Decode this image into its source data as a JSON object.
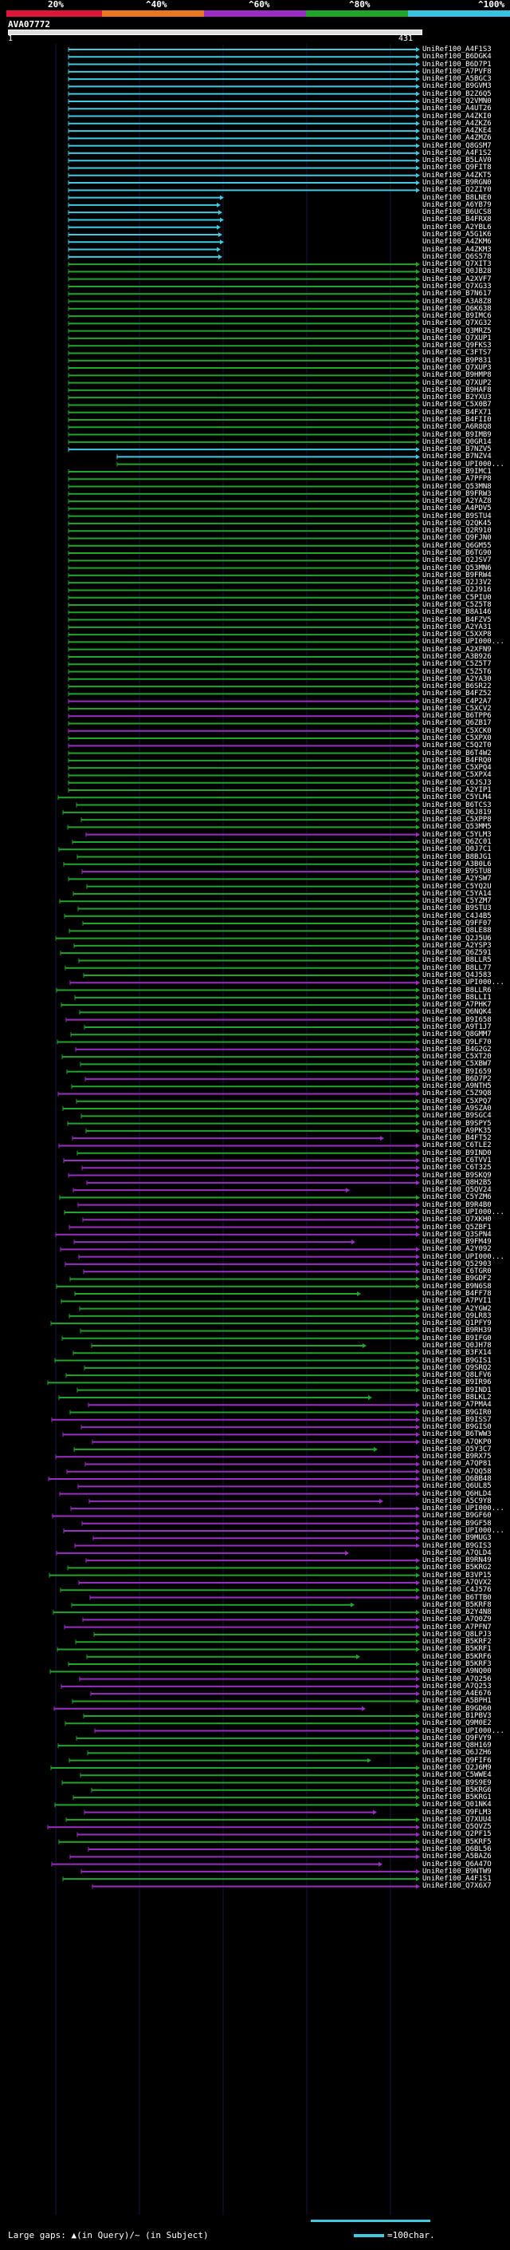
{
  "header": {
    "query_id": "AVA07772",
    "start": "1",
    "end": "431"
  },
  "identity_scale": {
    "labels": [
      "20%",
      "^40%",
      "^60%",
      "^80%",
      "^100%"
    ],
    "colors": [
      "#e0153a",
      "#e97722",
      "#9b2ec2",
      "#21a52a",
      "#38c3e0"
    ]
  },
  "legend": {
    "gaps_text": "Large gaps: ▲(in Query)/~ (in Subject)",
    "scale_text": "=100char."
  },
  "hits": [
    {
      "name": "UniRef100_A4F1S3",
      "color": "#41c9e0"
    },
    {
      "name": "UniRef100_B6DGK4",
      "color": "#41c9e0"
    },
    {
      "name": "UniRef100_B6D7P1",
      "color": "#41c9e0"
    },
    {
      "name": "UniRef100_A7PVF8",
      "color": "#41c9e0"
    },
    {
      "name": "UniRef100_A5BGC3",
      "color": "#41c9e0"
    },
    {
      "name": "UniRef100_B9GVM3",
      "color": "#41c9e0"
    },
    {
      "name": "UniRef100_B2Z6Q5",
      "color": "#41c9e0"
    },
    {
      "name": "UniRef100_Q2VMN0",
      "color": "#41c9e0"
    },
    {
      "name": "UniRef100_A4UT26",
      "color": "#41c9e0"
    },
    {
      "name": "UniRef100_A4ZKI0",
      "color": "#41c9e0"
    },
    {
      "name": "UniRef100_A4ZKZ6",
      "color": "#41c9e0"
    },
    {
      "name": "UniRef100_A4ZKE4",
      "color": "#41c9e0"
    },
    {
      "name": "UniRef100_A4ZMZ6",
      "color": "#41c9e0"
    },
    {
      "name": "UniRef100_Q8GSM7",
      "color": "#41c9e0"
    },
    {
      "name": "UniRef100_A4F1S2",
      "color": "#41c9e0"
    },
    {
      "name": "UniRef100_B5LAV0",
      "color": "#41c9e0"
    },
    {
      "name": "UniRef100_Q9FIT8",
      "color": "#41c9e0"
    },
    {
      "name": "UniRef100_A4ZKT5",
      "color": "#41c9e0"
    },
    {
      "name": "UniRef100_B9RGN0",
      "color": "#41c9e0"
    },
    {
      "name": "UniRef100_Q2ZIY0",
      "color": "#41c9e0"
    },
    {
      "name": "UniRef100_B8LNE0",
      "color": "#41c9e0"
    },
    {
      "name": "UniRef100_A6YB79",
      "color": "#41c9e0"
    },
    {
      "name": "UniRef100_B6UCS8",
      "color": "#41c9e0"
    },
    {
      "name": "UniRef100_B4FRX8",
      "color": "#41c9e0"
    },
    {
      "name": "UniRef100_A2YBL6",
      "color": "#41c9e0"
    },
    {
      "name": "UniRef100_A5G1K6",
      "color": "#41c9e0"
    },
    {
      "name": "UniRef100_A4ZKM6",
      "color": "#41c9e0"
    },
    {
      "name": "UniRef100_A4ZKM3",
      "color": "#41c9e0"
    },
    {
      "name": "UniRef100_Q6S578",
      "color": "#41c9e0"
    },
    {
      "name": "UniRef100_Q7XIT3",
      "color": "#21a52a"
    },
    {
      "name": "UniRef100_Q0JB28",
      "color": "#21a52a"
    },
    {
      "name": "UniRef100_A2XVF7",
      "color": "#21a52a"
    },
    {
      "name": "UniRef100_Q7XG33",
      "color": "#21a52a"
    },
    {
      "name": "UniRef100_B7N617",
      "color": "#21a52a"
    },
    {
      "name": "UniRef100_A3A8Z8",
      "color": "#21a52a"
    },
    {
      "name": "UniRef100_Q6K638",
      "color": "#21a52a"
    },
    {
      "name": "UniRef100_B9IMC6",
      "color": "#21a52a"
    },
    {
      "name": "UniRef100_Q7XG32",
      "color": "#21a52a"
    },
    {
      "name": "UniRef100_Q3MRZ5",
      "color": "#21a52a"
    },
    {
      "name": "UniRef100_Q7XUP1",
      "color": "#21a52a"
    },
    {
      "name": "UniRef100_Q9FKS3",
      "color": "#21a52a"
    },
    {
      "name": "UniRef100_C3FTS7",
      "color": "#21a52a"
    },
    {
      "name": "UniRef100_B9P831",
      "color": "#21a52a"
    },
    {
      "name": "UniRef100_Q7XUP3",
      "color": "#21a52a"
    },
    {
      "name": "UniRef100_B9HMP8",
      "color": "#21a52a"
    },
    {
      "name": "UniRef100_Q7XUP2",
      "color": "#21a52a"
    },
    {
      "name": "UniRef100_B9HAF8",
      "color": "#21a52a"
    },
    {
      "name": "UniRef100_B2YXU3",
      "color": "#21a52a"
    },
    {
      "name": "UniRef100_C5X0B7",
      "color": "#21a52a"
    },
    {
      "name": "UniRef100_B4FX71",
      "color": "#21a52a"
    },
    {
      "name": "UniRef100_B4FII0",
      "color": "#21a52a"
    },
    {
      "name": "UniRef100_A6R8Q8",
      "color": "#21a52a"
    },
    {
      "name": "UniRef100_B9IMB9",
      "color": "#21a52a"
    },
    {
      "name": "UniRef100_Q0GR14",
      "color": "#21a52a"
    },
    {
      "name": "UniRef100_B7NZV5",
      "color": "#41c9e0"
    },
    {
      "name": "UniRef100_B7NZV4",
      "color": "#41c9e0"
    },
    {
      "name": "UniRef100_UPI000...",
      "color": "#21a52a"
    },
    {
      "name": "UniRef100_B9IMC1",
      "color": "#21a52a"
    },
    {
      "name": "UniRef100_A7PFP8",
      "color": "#21a52a"
    },
    {
      "name": "UniRef100_Q53MN8",
      "color": "#21a52a"
    },
    {
      "name": "UniRef100_B9FRW3",
      "color": "#21a52a"
    },
    {
      "name": "UniRef100_A2YAZ8",
      "color": "#21a52a"
    },
    {
      "name": "UniRef100_A4PDV5",
      "color": "#21a52a"
    },
    {
      "name": "UniRef100_B9STU4",
      "color": "#21a52a"
    },
    {
      "name": "UniRef100_Q2QK45",
      "color": "#21a52a"
    },
    {
      "name": "UniRef100_Q2R910",
      "color": "#21a52a"
    },
    {
      "name": "UniRef100_Q9FJN0",
      "color": "#21a52a"
    },
    {
      "name": "UniRef100_Q6GM55",
      "color": "#21a52a"
    },
    {
      "name": "UniRef100_B6TG90",
      "color": "#21a52a"
    },
    {
      "name": "UniRef100_Q2JSV7",
      "color": "#21a52a"
    },
    {
      "name": "UniRef100_Q53MN6",
      "color": "#21a52a"
    },
    {
      "name": "UniRef100_B9FRW4",
      "color": "#21a52a"
    },
    {
      "name": "UniRef100_Q2J3V2",
      "color": "#21a52a"
    },
    {
      "name": "UniRef100_Q2J916",
      "color": "#21a52a"
    },
    {
      "name": "UniRef100_C5PIU0",
      "color": "#21a52a"
    },
    {
      "name": "UniRef100_C5Z5T8",
      "color": "#21a52a"
    },
    {
      "name": "UniRef100_B8A146",
      "color": "#21a52a"
    },
    {
      "name": "UniRef100_B4FZV5",
      "color": "#21a52a"
    },
    {
      "name": "UniRef100_A2YA31",
      "color": "#21a52a"
    },
    {
      "name": "UniRef100_C5XXP8",
      "color": "#21a52a"
    },
    {
      "name": "UniRef100_UPI000...",
      "color": "#21a52a"
    },
    {
      "name": "UniRef100_A2XFN9",
      "color": "#21a52a"
    },
    {
      "name": "UniRef100_A3B926",
      "color": "#21a52a"
    },
    {
      "name": "UniRef100_C5Z5T7",
      "color": "#21a52a"
    },
    {
      "name": "UniRef100_C5Z5T6",
      "color": "#21a52a"
    },
    {
      "name": "UniRef100_A2YA30",
      "color": "#21a52a"
    },
    {
      "name": "UniRef100_B6SR22",
      "color": "#21a52a"
    },
    {
      "name": "UniRef100_B4FZ52",
      "color": "#21a52a"
    },
    {
      "name": "UniRef100_C4P2A7",
      "color": "#9b2ec2"
    },
    {
      "name": "UniRef100_C5XCV2",
      "color": "#21a52a"
    },
    {
      "name": "UniRef100_B6TPP6",
      "color": "#9b2ec2"
    },
    {
      "name": "UniRef100_Q6ZB17",
      "color": "#21a52a"
    },
    {
      "name": "UniRef100_C5XCK0",
      "color": "#9b2ec2"
    },
    {
      "name": "UniRef100_C5XPX0",
      "color": "#21a52a"
    },
    {
      "name": "UniRef100_C5Q2T0",
      "color": "#9b2ec2"
    },
    {
      "name": "UniRef100_B6T4W2",
      "color": "#21a52a"
    },
    {
      "name": "UniRef100_B4FRQ0",
      "color": "#21a52a"
    },
    {
      "name": "UniRef100_C5XPQ4",
      "color": "#21a52a"
    },
    {
      "name": "UniRef100_C5XPX4",
      "color": "#21a52a"
    },
    {
      "name": "UniRef100_C6JSJ3",
      "color": "#21a52a"
    },
    {
      "name": "UniRef100_A2YIP1",
      "color": "#21a52a"
    },
    {
      "name": "UniRef100_C5YLM4",
      "color": "#21a52a"
    },
    {
      "name": "UniRef100_B6TCS3",
      "color": "#21a52a"
    },
    {
      "name": "UniRef100_Q6J819",
      "color": "#21a52a"
    },
    {
      "name": "UniRef100_C5XPP8",
      "color": "#21a52a"
    },
    {
      "name": "UniRef100_Q53MM5",
      "color": "#21a52a"
    },
    {
      "name": "UniRef100_C5YLM3",
      "color": "#9b2ec2"
    },
    {
      "name": "UniRef100_Q6ZC01",
      "color": "#21a52a"
    },
    {
      "name": "UniRef100_Q0J7C1",
      "color": "#21a52a"
    },
    {
      "name": "UniRef100_B8BJG1",
      "color": "#21a52a"
    },
    {
      "name": "UniRef100_A3B0L6",
      "color": "#21a52a"
    },
    {
      "name": "UniRef100_B9STU8",
      "color": "#9b2ec2"
    },
    {
      "name": "UniRef100_A2YSW7",
      "color": "#21a52a"
    },
    {
      "name": "UniRef100_C5YQ2U",
      "color": "#21a52a"
    },
    {
      "name": "UniRef100_C5YA14",
      "color": "#21a52a"
    },
    {
      "name": "UniRef100_C5YZM7",
      "color": "#21a52a"
    },
    {
      "name": "UniRef100_B9STU3",
      "color": "#21a52a"
    },
    {
      "name": "UniRef100_C4J4B5",
      "color": "#21a52a"
    },
    {
      "name": "UniRef100_Q9FF07",
      "color": "#21a52a"
    },
    {
      "name": "UniRef100_Q8LE88",
      "color": "#21a52a"
    },
    {
      "name": "UniRef100_Q2J5U6",
      "color": "#21a52a"
    },
    {
      "name": "UniRef100_A2YSP3",
      "color": "#21a52a"
    },
    {
      "name": "UniRef100_Q6Z591",
      "color": "#21a52a"
    },
    {
      "name": "UniRef100_B8LLR5",
      "color": "#21a52a"
    },
    {
      "name": "UniRef100_B8LL77",
      "color": "#21a52a"
    },
    {
      "name": "UniRef100_Q4J583",
      "color": "#21a52a"
    },
    {
      "name": "UniRef100_UPI000...",
      "color": "#9b2ec2"
    },
    {
      "name": "UniRef100_B8LLR6",
      "color": "#21a52a"
    },
    {
      "name": "UniRef100_B8LLI1",
      "color": "#21a52a"
    },
    {
      "name": "UniRef100_A7PHK7",
      "color": "#21a52a"
    },
    {
      "name": "UniRef100_Q6NQK4",
      "color": "#21a52a"
    },
    {
      "name": "UniRef100_B9I658",
      "color": "#9b2ec2"
    },
    {
      "name": "UniRef100_A9T1J7",
      "color": "#21a52a"
    },
    {
      "name": "UniRef100_Q8GMM7",
      "color": "#21a52a"
    },
    {
      "name": "UniRef100_Q9LF70",
      "color": "#21a52a"
    },
    {
      "name": "UniRef100_B4G2G2",
      "color": "#9b2ec2"
    },
    {
      "name": "UniRef100_C5XT20",
      "color": "#21a52a"
    },
    {
      "name": "UniRef100_C5XBW7",
      "color": "#21a52a"
    },
    {
      "name": "UniRef100_B9I659",
      "color": "#21a52a"
    },
    {
      "name": "UniRef100_B6D7P2",
      "color": "#9b2ec2"
    },
    {
      "name": "UniRef100_A9NTH5",
      "color": "#21a52a"
    },
    {
      "name": "UniRef100_C5Z9Q8",
      "color": "#9b2ec2"
    },
    {
      "name": "UniRef100_C5XPQ7",
      "color": "#21a52a"
    },
    {
      "name": "UniRef100_A9SZA0",
      "color": "#21a52a"
    },
    {
      "name": "UniRef100_B9SGC4",
      "color": "#21a52a"
    },
    {
      "name": "UniRef100_B9SPY5",
      "color": "#21a52a"
    },
    {
      "name": "UniRef100_A9PK35",
      "color": "#21a52a"
    },
    {
      "name": "UniRef100_B4FT52",
      "color": "#9b2ec2"
    },
    {
      "name": "UniRef100_C6TLE2",
      "color": "#9b2ec2"
    },
    {
      "name": "UniRef100_B9IND0",
      "color": "#21a52a"
    },
    {
      "name": "UniRef100_C6TVV1",
      "color": "#9b2ec2"
    },
    {
      "name": "UniRef100_C6T325",
      "color": "#9b2ec2"
    },
    {
      "name": "UniRef100_B9SKQ9",
      "color": "#9b2ec2"
    },
    {
      "name": "UniRef100_Q8H2B5",
      "color": "#9b2ec2"
    },
    {
      "name": "UniRef100_Q5QV24",
      "color": "#9b2ec2"
    },
    {
      "name": "UniRef100_C5YZM6",
      "color": "#21a52a"
    },
    {
      "name": "UniRef100_B9R4B0",
      "color": "#9b2ec2"
    },
    {
      "name": "UniRef100_UPI000...",
      "color": "#21a52a"
    },
    {
      "name": "UniRef100_Q7XKH0",
      "color": "#9b2ec2"
    },
    {
      "name": "UniRef100_Q5ZBF1",
      "color": "#9b2ec2"
    },
    {
      "name": "UniRef100_Q3SPN4",
      "color": "#9b2ec2"
    },
    {
      "name": "UniRef100_B9FM49",
      "color": "#9b2ec2"
    },
    {
      "name": "UniRef100_A2Y092",
      "color": "#9b2ec2"
    },
    {
      "name": "UniRef100_UPI000...",
      "color": "#9b2ec2"
    },
    {
      "name": "UniRef100_Q52903",
      "color": "#9b2ec2"
    },
    {
      "name": "UniRef100_C6TGR0",
      "color": "#9b2ec2"
    },
    {
      "name": "UniRef100_B9GDF2",
      "color": "#21a52a"
    },
    {
      "name": "UniRef100_B9N6S8",
      "color": "#21a52a"
    },
    {
      "name": "UniRef100_B4FF78",
      "color": "#21a52a"
    },
    {
      "name": "UniRef100_A7PVI1",
      "color": "#21a52a"
    },
    {
      "name": "UniRef100_A2YGW2",
      "color": "#21a52a"
    },
    {
      "name": "UniRef100_Q9LR83",
      "color": "#21a52a"
    },
    {
      "name": "UniRef100_Q1PFY9",
      "color": "#21a52a"
    },
    {
      "name": "UniRef100_B9RH39",
      "color": "#21a52a"
    },
    {
      "name": "UniRef100_B9IFG0",
      "color": "#21a52a"
    },
    {
      "name": "UniRef100_Q0JH78",
      "color": "#21a52a"
    },
    {
      "name": "UniRef100_B3FX14",
      "color": "#21a52a"
    },
    {
      "name": "UniRef100_B9GIS1",
      "color": "#21a52a"
    },
    {
      "name": "UniRef100_Q9SRQ2",
      "color": "#21a52a"
    },
    {
      "name": "UniRef100_Q8LFV6",
      "color": "#21a52a"
    },
    {
      "name": "UniRef100_B9IR96",
      "color": "#21a52a"
    },
    {
      "name": "UniRef100_B9IND1",
      "color": "#21a52a"
    },
    {
      "name": "UniRef100_B8LKL2",
      "color": "#21a52a"
    },
    {
      "name": "UniRef100_A7PMA4",
      "color": "#9b2ec2"
    },
    {
      "name": "UniRef100_B9GIR0",
      "color": "#21a52a"
    },
    {
      "name": "UniRef100_B9ISS7",
      "color": "#9b2ec2"
    },
    {
      "name": "UniRef100_B9GIS0",
      "color": "#9b2ec2"
    },
    {
      "name": "UniRef100_B6TWW3",
      "color": "#9b2ec2"
    },
    {
      "name": "UniRef100_A7QKP0",
      "color": "#9b2ec2"
    },
    {
      "name": "UniRef100_Q5Y3C7",
      "color": "#21a52a"
    },
    {
      "name": "UniRef100_B9RX75",
      "color": "#9b2ec2"
    },
    {
      "name": "UniRef100_A7QP81",
      "color": "#9b2ec2"
    },
    {
      "name": "UniRef100_A7QQ58",
      "color": "#9b2ec2"
    },
    {
      "name": "UniRef100_Q6BB48",
      "color": "#9b2ec2"
    },
    {
      "name": "UniRef100_Q6UL85",
      "color": "#9b2ec2"
    },
    {
      "name": "UniRef100_Q6HLD4",
      "color": "#9b2ec2"
    },
    {
      "name": "UniRef100_A5C9Y8",
      "color": "#9b2ec2"
    },
    {
      "name": "UniRef100_UPI000...",
      "color": "#9b2ec2"
    },
    {
      "name": "UniRef100_B9GF60",
      "color": "#9b2ec2"
    },
    {
      "name": "UniRef100_B9GF58",
      "color": "#9b2ec2"
    },
    {
      "name": "UniRef100_UPI000...",
      "color": "#9b2ec2"
    },
    {
      "name": "UniRef100_B9MUG3",
      "color": "#9b2ec2"
    },
    {
      "name": "UniRef100_B9GIS3",
      "color": "#9b2ec2"
    },
    {
      "name": "UniRef100_A7QLD4",
      "color": "#9b2ec2"
    },
    {
      "name": "UniRef100_B9RN49",
      "color": "#9b2ec2"
    },
    {
      "name": "UniRef100_B5KRG2",
      "color": "#21a52a"
    },
    {
      "name": "UniRef100_B3VP15",
      "color": "#21a52a"
    },
    {
      "name": "UniRef100_A7QVX2",
      "color": "#9b2ec2"
    },
    {
      "name": "UniRef100_C4J576",
      "color": "#21a52a"
    },
    {
      "name": "UniRef100_B6TTB0",
      "color": "#9b2ec2"
    },
    {
      "name": "UniRef100_B5KRF8",
      "color": "#21a52a"
    },
    {
      "name": "UniRef100_B2Y4N8",
      "color": "#21a52a"
    },
    {
      "name": "UniRef100_A7Q0Z9",
      "color": "#9b2ec2"
    },
    {
      "name": "UniRef100_A7PFN7",
      "color": "#9b2ec2"
    },
    {
      "name": "UniRef100_Q8LPJ3",
      "color": "#21a52a"
    },
    {
      "name": "UniRef100_B5KRF2",
      "color": "#21a52a"
    },
    {
      "name": "UniRef100_B5KRF1",
      "color": "#21a52a"
    },
    {
      "name": "UniRef100_B5KRF6",
      "color": "#21a52a"
    },
    {
      "name": "UniRef100_B5KRF3",
      "color": "#21a52a"
    },
    {
      "name": "UniRef100_A9NQ00",
      "color": "#21a52a"
    },
    {
      "name": "UniRef100_A7Q256",
      "color": "#9b2ec2"
    },
    {
      "name": "UniRef100_A7Q253",
      "color": "#9b2ec2"
    },
    {
      "name": "UniRef100_A4E676",
      "color": "#9b2ec2"
    },
    {
      "name": "UniRef100_A5BPH1",
      "color": "#21a52a"
    },
    {
      "name": "UniRef100_B9GD60",
      "color": "#9b2ec2"
    },
    {
      "name": "UniRef100_B1PBV3",
      "color": "#21a52a"
    },
    {
      "name": "UniRef100_Q9M0E2",
      "color": "#21a52a"
    },
    {
      "name": "UniRef100_UPI000...",
      "color": "#9b2ec2"
    },
    {
      "name": "UniRef100_Q9FVY9",
      "color": "#21a52a"
    },
    {
      "name": "UniRef100_Q8H169",
      "color": "#21a52a"
    },
    {
      "name": "UniRef100_Q6JZH6",
      "color": "#21a52a"
    },
    {
      "name": "UniRef100_Q9FIF6",
      "color": "#21a52a"
    },
    {
      "name": "UniRef100_Q2J6M9",
      "color": "#21a52a"
    },
    {
      "name": "UniRef100_C5WWE4",
      "color": "#21a52a"
    },
    {
      "name": "UniRef100_B9S9E9",
      "color": "#21a52a"
    },
    {
      "name": "UniRef100_B5KRG6",
      "color": "#21a52a"
    },
    {
      "name": "UniRef100_B5KRG1",
      "color": "#21a52a"
    },
    {
      "name": "UniRef100_Q01NK4",
      "color": "#21a52a"
    },
    {
      "name": "UniRef100_Q9FLM3",
      "color": "#9b2ec2"
    },
    {
      "name": "UniRef100_Q7XUU4",
      "color": "#21a52a"
    },
    {
      "name": "UniRef100_Q5QVZ5",
      "color": "#9b2ec2"
    },
    {
      "name": "UniRef100_Q2PF15",
      "color": "#9b2ec2"
    },
    {
      "name": "UniRef100_B5KRF5",
      "color": "#21a52a"
    },
    {
      "name": "UniRef100_Q6BL56",
      "color": "#9b2ec2"
    },
    {
      "name": "UniRef100_A5BAZ6",
      "color": "#9b2ec2"
    },
    {
      "name": "UniRef100_Q6A47O",
      "color": "#9b2ec2"
    },
    {
      "name": "UniRef100_B9NTW9",
      "color": "#9b2ec2"
    },
    {
      "name": "UniRef100_A4F1S1",
      "color": "#21a52a"
    },
    {
      "name": "UniRef100_Q7X6X7",
      "color": "#9b2ec2"
    }
  ]
}
